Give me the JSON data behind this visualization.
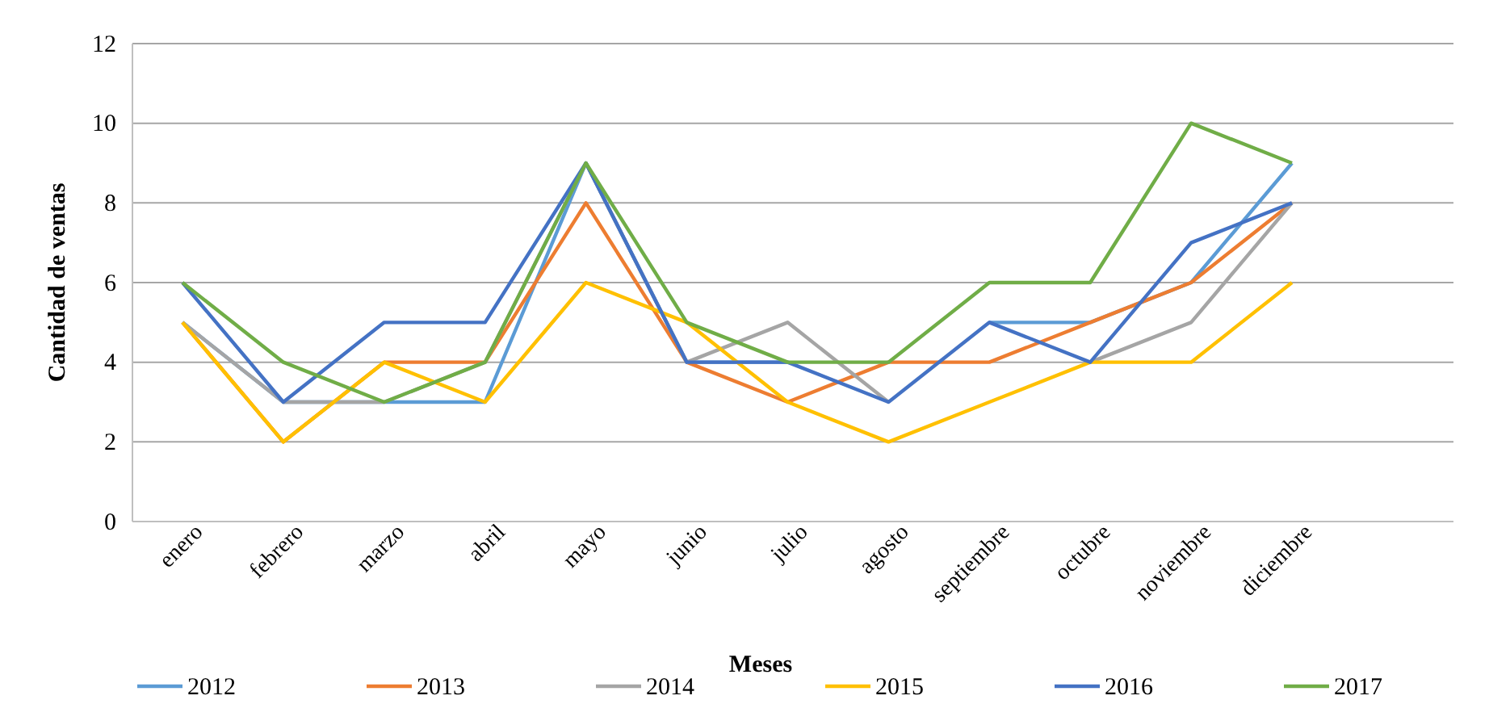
{
  "chart_data": {
    "type": "line",
    "xlabel": "Meses",
    "ylabel": "Cantidad de ventas",
    "categories": [
      "enero",
      "febrero",
      "marzo",
      "abril",
      "mayo",
      "junio",
      "julio",
      "agosto",
      "septiembre",
      "octubre",
      "noviembre",
      "diciembre"
    ],
    "ylim": [
      0,
      12
    ],
    "yticks": [
      0,
      2,
      4,
      6,
      8,
      10,
      12
    ],
    "grid": "y",
    "legend": "bottom",
    "marker": "none",
    "series": [
      {
        "name": "2012",
        "color": "#5b9bd5",
        "values": [
          5,
          3,
          3,
          3,
          9,
          4,
          4,
          null,
          5,
          5,
          6,
          9
        ]
      },
      {
        "name": "2013",
        "color": "#ed7d31",
        "values": [
          5,
          2,
          4,
          4,
          8,
          4,
          3,
          4,
          4,
          5,
          6,
          8
        ]
      },
      {
        "name": "2014",
        "color": "#a5a5a5",
        "values": [
          5,
          3,
          3,
          4,
          9,
          4,
          5,
          3,
          null,
          4,
          5,
          8
        ]
      },
      {
        "name": "2015",
        "color": "#ffc000",
        "values": [
          5,
          2,
          4,
          3,
          6,
          5,
          3,
          2,
          3,
          4,
          4,
          6
        ]
      },
      {
        "name": "2016",
        "color": "#4472c4",
        "values": [
          6,
          3,
          5,
          5,
          9,
          4,
          4,
          3,
          5,
          4,
          7,
          8
        ]
      },
      {
        "name": "2017",
        "color": "#70ad47",
        "values": [
          6,
          4,
          3,
          4,
          9,
          5,
          4,
          4,
          6,
          6,
          10,
          9
        ]
      }
    ]
  }
}
